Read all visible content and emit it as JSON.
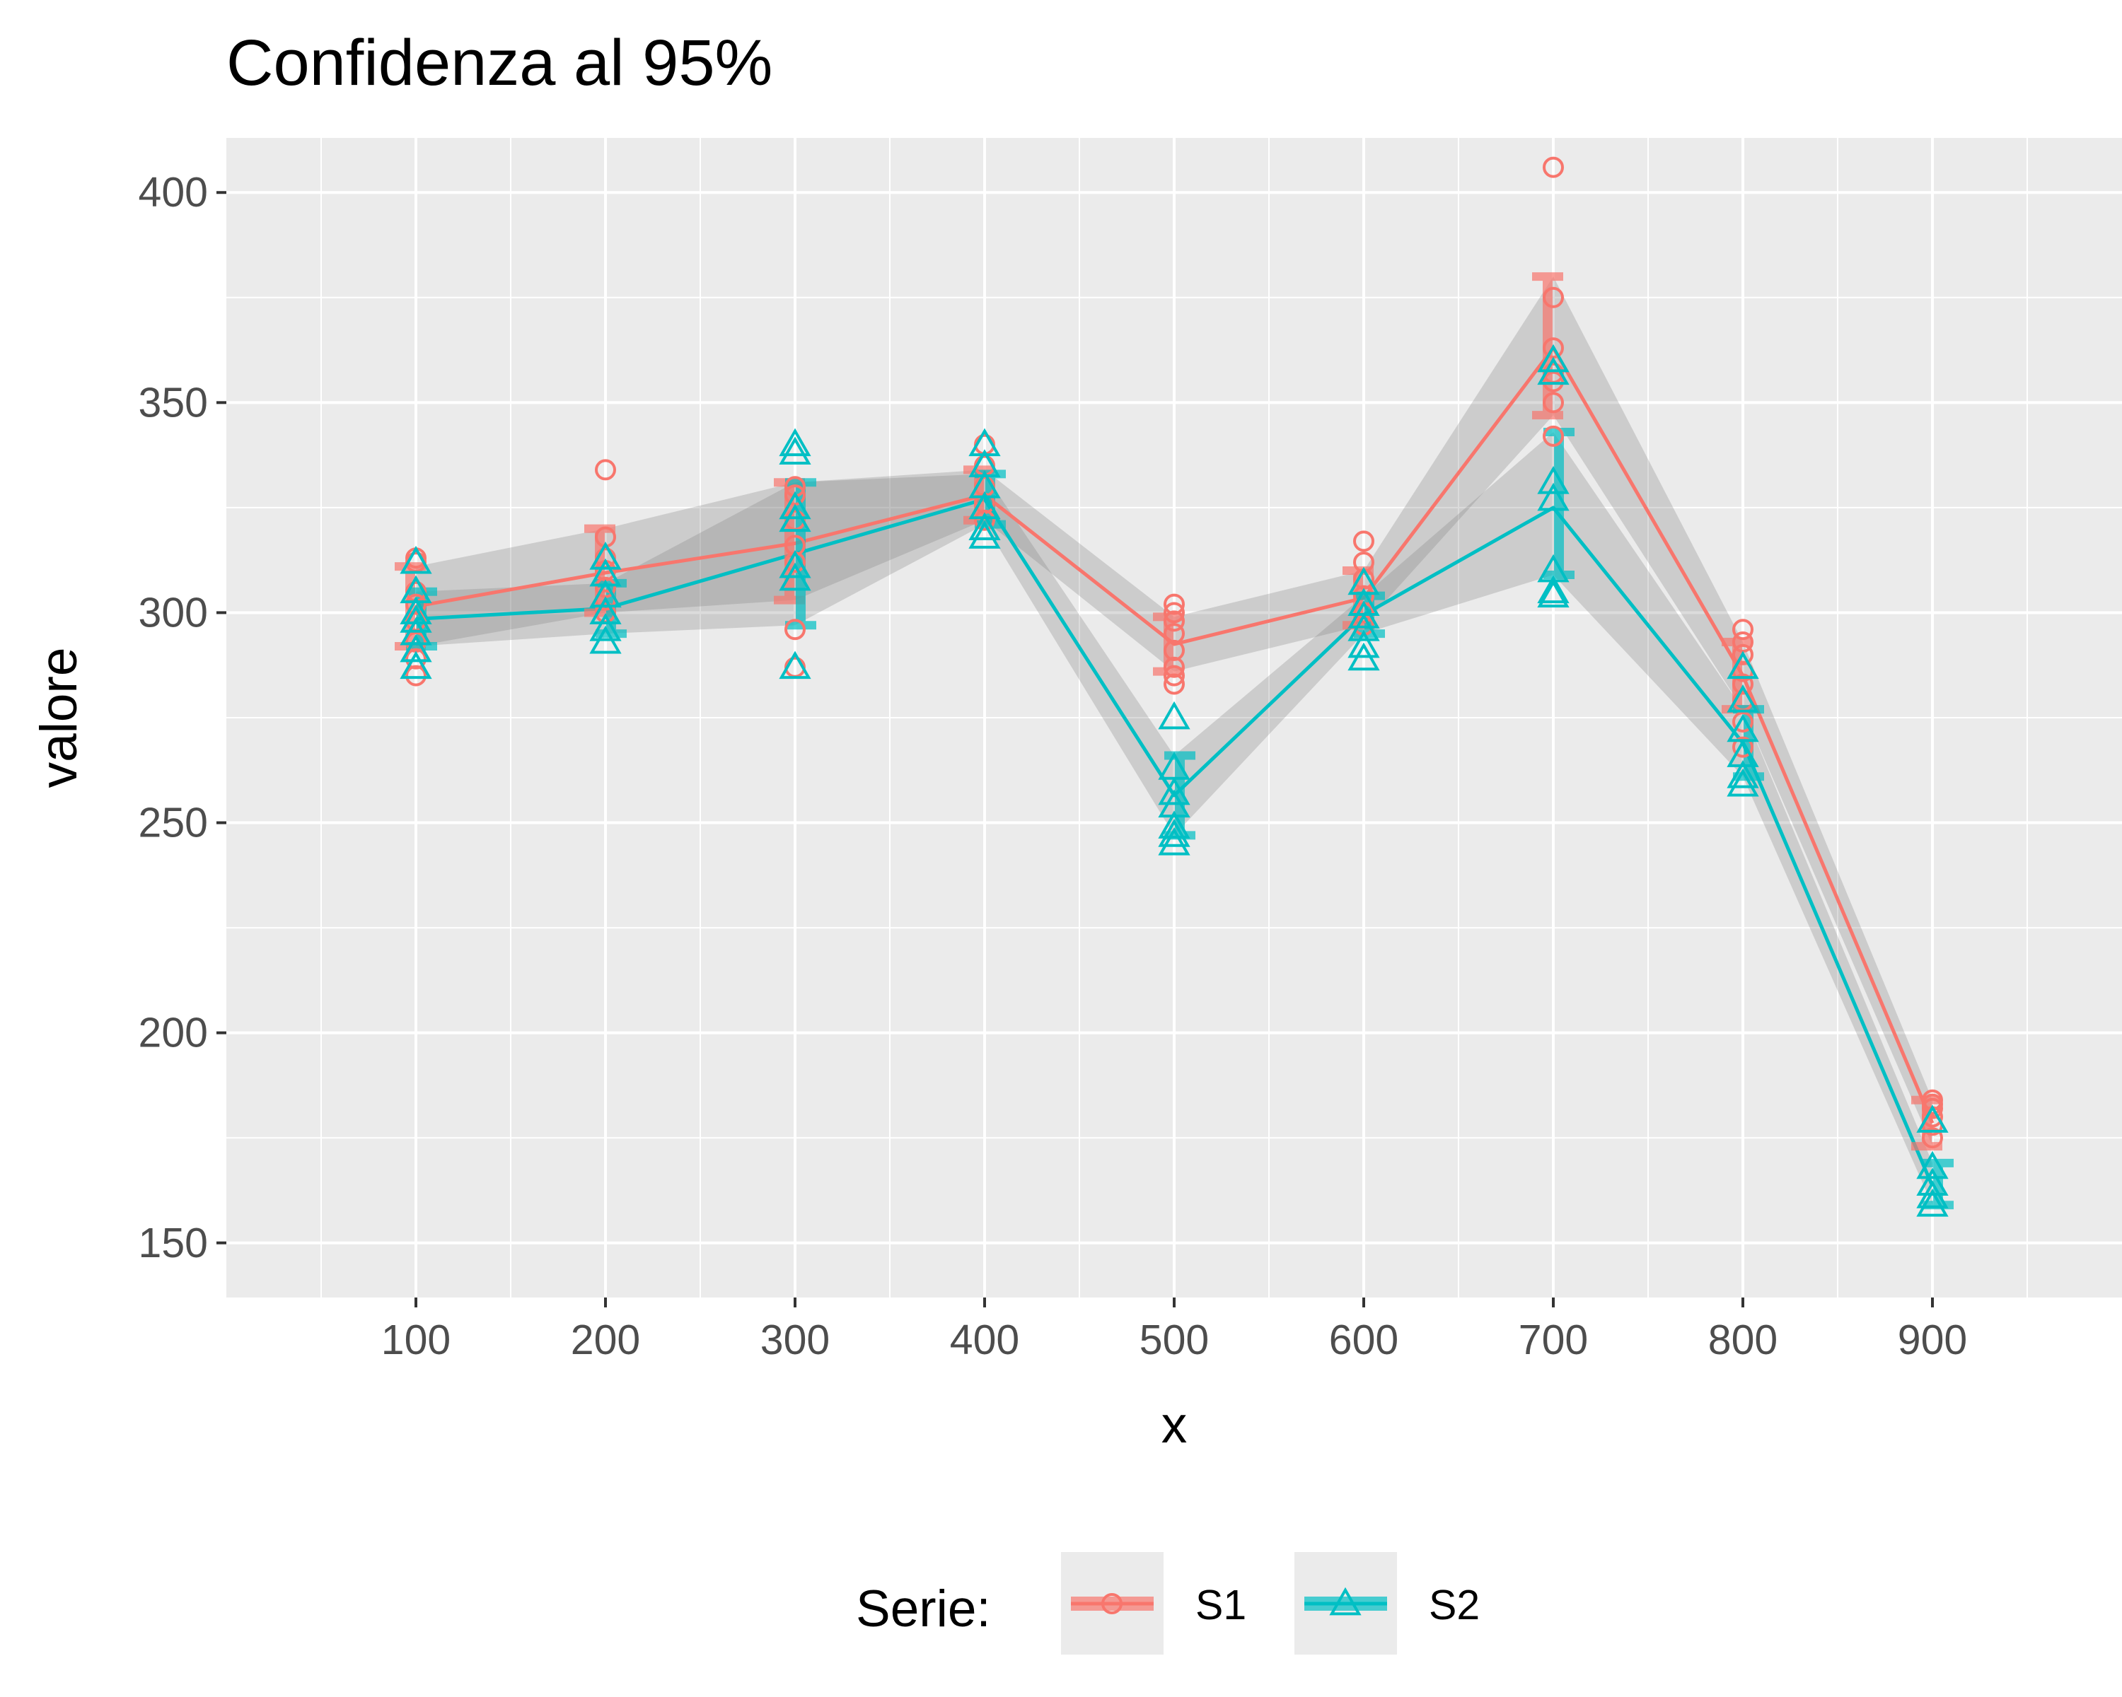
{
  "chart_data": {
    "type": "line",
    "title": "Confidenza al 95%",
    "xlabel": "x",
    "ylabel": "valore",
    "xlim": [
      0,
      1000
    ],
    "ylim": [
      137,
      413
    ],
    "x_ticks": [
      100,
      200,
      300,
      400,
      500,
      600,
      700,
      800,
      900
    ],
    "y_ticks": [
      150,
      200,
      250,
      300,
      350,
      400
    ],
    "grid": true,
    "legend": {
      "title": "Serie:",
      "position": "bottom"
    },
    "x": [
      100,
      200,
      300,
      400,
      500,
      600,
      700,
      800,
      900
    ],
    "series": [
      {
        "name": "S1",
        "color": "#F8766D",
        "marker": "circle",
        "mean": [
          301.5,
          309.5,
          316.5,
          328.0,
          292.5,
          303.5,
          363.0,
          285.0,
          178.5
        ],
        "ci_low": [
          292,
          300,
          303,
          322,
          286,
          297,
          347,
          277,
          173
        ],
        "ci_high": [
          311,
          320,
          331,
          334,
          299,
          310,
          380,
          293,
          184
        ],
        "points": [
          [
            313,
            312,
            305,
            302,
            298,
            293,
            289,
            285
          ],
          [
            334,
            318,
            313,
            310,
            306,
            303,
            300
          ],
          [
            330,
            328,
            322,
            316,
            312,
            296,
            287
          ],
          [
            340,
            335,
            330,
            326,
            322
          ],
          [
            302,
            300,
            298,
            295,
            291,
            287,
            285,
            283
          ],
          [
            317,
            312,
            308,
            304,
            300,
            297
          ],
          [
            406,
            375,
            363,
            357,
            355,
            350,
            342
          ],
          [
            296,
            293,
            290,
            286,
            283,
            279,
            274,
            268
          ],
          [
            184,
            183,
            182,
            180,
            178,
            175
          ]
        ]
      },
      {
        "name": "S2",
        "color": "#00BFC4",
        "marker": "triangle",
        "mean": [
          298.5,
          301.0,
          314.0,
          327.0,
          256.5,
          299.5,
          325.0,
          269.0,
          163.5
        ],
        "ci_low": [
          292,
          295,
          297,
          321,
          247,
          295,
          309,
          261,
          159
        ],
        "ci_high": [
          305,
          307,
          331,
          333,
          266,
          304,
          343,
          277,
          169
        ],
        "points": [
          [
            312,
            305,
            300,
            298,
            295,
            291,
            287
          ],
          [
            313,
            309,
            304,
            300,
            296,
            293
          ],
          [
            340,
            338,
            325,
            322,
            311,
            308,
            287
          ],
          [
            340,
            335,
            330,
            325,
            320,
            318
          ],
          [
            275,
            263,
            257,
            254,
            249,
            247,
            245
          ],
          [
            307,
            302,
            299,
            296,
            292,
            289
          ],
          [
            360,
            357,
            331,
            327,
            310,
            305,
            304
          ],
          [
            287,
            279,
            272,
            266,
            261,
            259
          ],
          [
            179,
            168,
            164,
            161,
            159
          ]
        ]
      }
    ]
  }
}
